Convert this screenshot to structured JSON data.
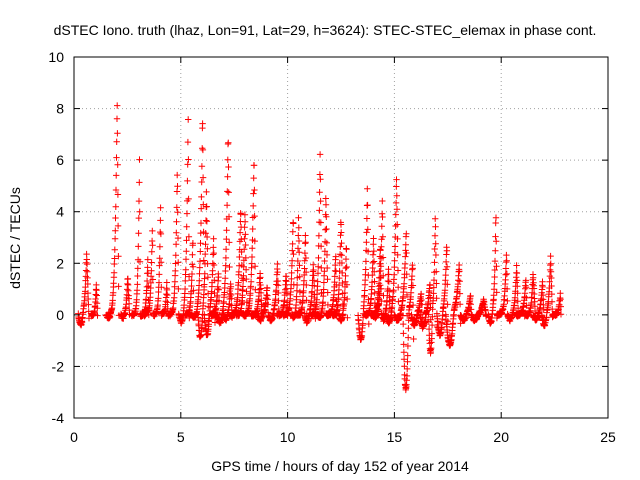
{
  "chart_data": {
    "type": "scatter",
    "title": "dSTEC Iono. truth (lhaz, Lon=91, Lat=29, h=3624): STEC-STEC_elemax in phase cont.",
    "xlabel": "GPS time / hours of day 152 of year 2014",
    "ylabel": "dSTEC  / TECUs",
    "xlim": [
      0,
      25
    ],
    "ylim": [
      -4,
      10
    ],
    "xticks": [
      0,
      5,
      10,
      15,
      20,
      25
    ],
    "yticks": [
      -4,
      -2,
      0,
      2,
      4,
      6,
      8,
      10
    ],
    "xtick_labels": [
      "0",
      "5",
      "10",
      "15",
      "20",
      "25"
    ],
    "ytick_labels": [
      "-4",
      "-2",
      "0",
      "2",
      "4",
      "6",
      "8",
      "10"
    ],
    "grid": true,
    "marker": "+",
    "color": "#ff0000",
    "data_range": [
      0.2,
      22.8
    ],
    "arcs": [
      {
        "start": 0.2,
        "end": 0.7,
        "peak": 2.4,
        "min": -0.4
      },
      {
        "start": 0.8,
        "end": 1.1,
        "peak": 1.2,
        "min": 0.0
      },
      {
        "start": 1.5,
        "end": 2.1,
        "peak": 8.3,
        "min": -0.1
      },
      {
        "start": 2.2,
        "end": 2.6,
        "peak": 1.5,
        "min": -0.1
      },
      {
        "start": 2.7,
        "end": 3.1,
        "peak": 6.0,
        "min": 0.0
      },
      {
        "start": 3.1,
        "end": 3.5,
        "peak": 2.2,
        "min": 0.0
      },
      {
        "start": 3.3,
        "end": 3.7,
        "peak": 3.5,
        "min": 0.1
      },
      {
        "start": 3.7,
        "end": 4.1,
        "peak": 4.3,
        "min": 0.0
      },
      {
        "start": 4.1,
        "end": 4.4,
        "peak": 1.3,
        "min": 0.1
      },
      {
        "start": 4.4,
        "end": 4.9,
        "peak": 5.7,
        "min": 0.0
      },
      {
        "start": 4.9,
        "end": 5.4,
        "peak": 7.6,
        "min": -0.3
      },
      {
        "start": 5.2,
        "end": 5.6,
        "peak": 3.0,
        "min": 0.0
      },
      {
        "start": 5.5,
        "end": 6.1,
        "peak": 7.8,
        "min": -0.1
      },
      {
        "start": 5.8,
        "end": 6.3,
        "peak": 4.8,
        "min": -0.9
      },
      {
        "start": 6.1,
        "end": 6.6,
        "peak": 3.0,
        "min": -0.8
      },
      {
        "start": 6.4,
        "end": 6.8,
        "peak": 1.7,
        "min": 0.0
      },
      {
        "start": 6.7,
        "end": 7.3,
        "peak": 7.1,
        "min": -0.3
      },
      {
        "start": 7.0,
        "end": 7.4,
        "peak": 1.2,
        "min": -0.2
      },
      {
        "start": 7.3,
        "end": 7.9,
        "peak": 4.2,
        "min": 0.0
      },
      {
        "start": 7.6,
        "end": 8.1,
        "peak": 4.0,
        "min": 0.0
      },
      {
        "start": 7.9,
        "end": 8.5,
        "peak": 6.2,
        "min": 0.0
      },
      {
        "start": 8.3,
        "end": 8.8,
        "peak": 1.6,
        "min": 0.0
      },
      {
        "start": 8.6,
        "end": 9.1,
        "peak": 1.1,
        "min": -0.2
      },
      {
        "start": 9.1,
        "end": 9.6,
        "peak": 2.0,
        "min": -0.2
      },
      {
        "start": 9.5,
        "end": 10.0,
        "peak": 1.6,
        "min": 0.0
      },
      {
        "start": 9.8,
        "end": 10.3,
        "peak": 3.9,
        "min": 0.0
      },
      {
        "start": 10.2,
        "end": 10.6,
        "peak": 3.8,
        "min": -0.1
      },
      {
        "start": 10.4,
        "end": 10.9,
        "peak": 3.2,
        "min": 0.0
      },
      {
        "start": 10.8,
        "end": 11.3,
        "peak": 2.0,
        "min": -0.3
      },
      {
        "start": 11.1,
        "end": 11.6,
        "peak": 6.2,
        "min": 0.0
      },
      {
        "start": 11.4,
        "end": 11.9,
        "peak": 4.6,
        "min": -0.1
      },
      {
        "start": 11.8,
        "end": 12.3,
        "peak": 2.4,
        "min": 0.0
      },
      {
        "start": 12.1,
        "end": 12.6,
        "peak": 3.8,
        "min": 0.0
      },
      {
        "start": 12.4,
        "end": 12.8,
        "peak": 2.8,
        "min": -0.2
      },
      {
        "start": 13.3,
        "end": 13.8,
        "peak": 5.0,
        "min": -1.0
      },
      {
        "start": 13.6,
        "end": 14.1,
        "peak": 3.0,
        "min": 0.0
      },
      {
        "start": 13.9,
        "end": 14.4,
        "peak": 2.7,
        "min": 0.0
      },
      {
        "start": 14.0,
        "end": 14.5,
        "peak": 4.5,
        "min": -0.1
      },
      {
        "start": 14.4,
        "end": 14.8,
        "peak": 1.8,
        "min": -0.2
      },
      {
        "start": 14.6,
        "end": 15.2,
        "peak": 5.4,
        "min": -0.3
      },
      {
        "start": 15.0,
        "end": 15.6,
        "peak": 3.3,
        "min": -0.2
      },
      {
        "start": 15.4,
        "end": 15.9,
        "peak": 2.1,
        "min": -3.0
      },
      {
        "start": 15.8,
        "end": 16.3,
        "peak": 0.9,
        "min": -0.4
      },
      {
        "start": 16.2,
        "end": 16.7,
        "peak": 1.3,
        "min": -0.5
      },
      {
        "start": 16.6,
        "end": 17.0,
        "peak": 3.8,
        "min": -1.5
      },
      {
        "start": 17.0,
        "end": 17.5,
        "peak": 2.8,
        "min": -0.8
      },
      {
        "start": 17.4,
        "end": 18.1,
        "peak": 2.0,
        "min": -1.2
      },
      {
        "start": 18.1,
        "end": 18.6,
        "peak": 0.8,
        "min": -0.2
      },
      {
        "start": 18.6,
        "end": 19.3,
        "peak": 0.6,
        "min": -0.2
      },
      {
        "start": 19.4,
        "end": 19.8,
        "peak": 4.0,
        "min": -0.3
      },
      {
        "start": 19.8,
        "end": 20.3,
        "peak": 2.4,
        "min": 0.0
      },
      {
        "start": 20.3,
        "end": 20.8,
        "peak": 1.9,
        "min": -0.2
      },
      {
        "start": 20.7,
        "end": 21.2,
        "peak": 1.4,
        "min": 0.0
      },
      {
        "start": 21.1,
        "end": 21.6,
        "peak": 1.6,
        "min": 0.0
      },
      {
        "start": 21.5,
        "end": 22.0,
        "peak": 1.3,
        "min": -0.2
      },
      {
        "start": 21.9,
        "end": 22.4,
        "peak": 2.3,
        "min": -0.4
      },
      {
        "start": 22.4,
        "end": 22.8,
        "peak": 0.8,
        "min": 0.0
      }
    ]
  }
}
